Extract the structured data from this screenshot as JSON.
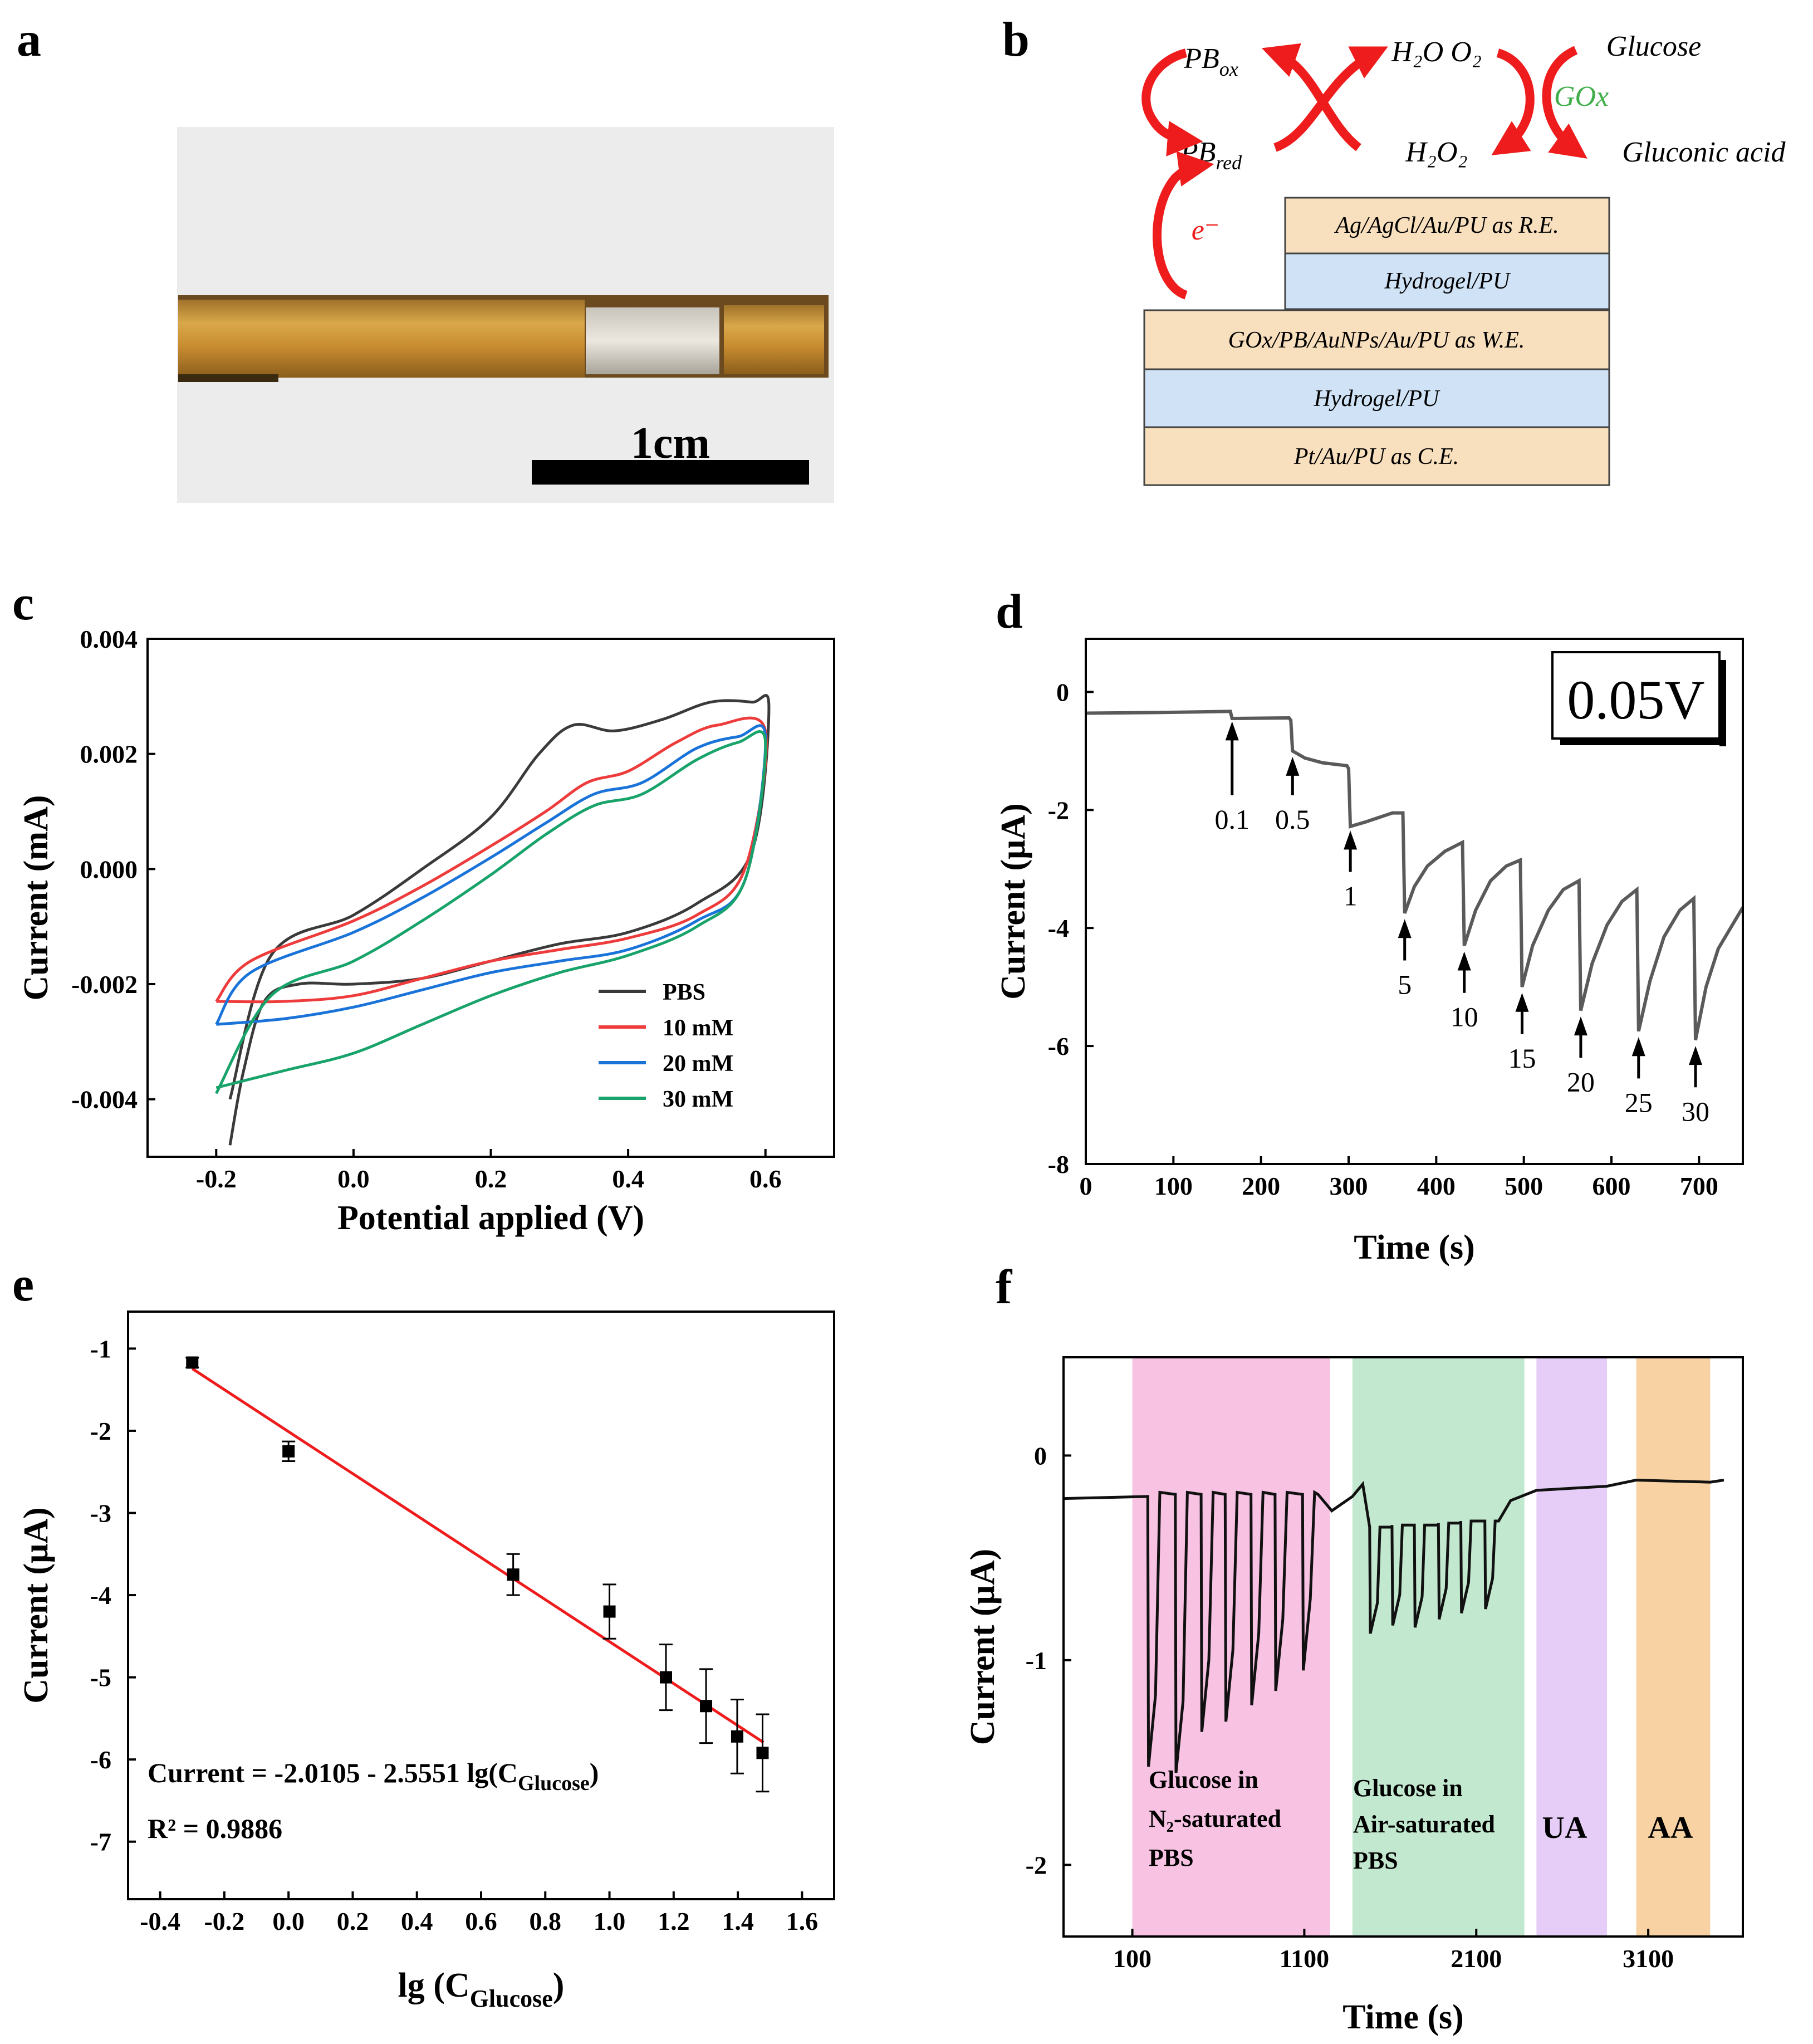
{
  "panels": {
    "a": {
      "letter": "a",
      "scale_label": "1cm"
    },
    "b": {
      "letter": "b",
      "species": {
        "pb_ox": "PB",
        "pb_ox_sub": "ox",
        "pb_red": "PB",
        "pb_red_sub": "red",
        "h2o_o2": "H₂O O₂",
        "h2o2": "H₂O₂",
        "glucose": "Glucose",
        "gox": "GOx",
        "gluconic": "Gluconic acid",
        "electron": "e⁻"
      },
      "layers": [
        "Ag/AgCl/Au/PU as R.E.",
        "Hydrogel/PU",
        "GOx/PB/AuNPs/Au/PU as W.E.",
        "Hydrogel/PU",
        "Pt/Au/PU as C.E."
      ],
      "colors": {
        "arrow": "#ee1c1c",
        "gox": "#3fae49",
        "tan": "#f8dfbd",
        "blue": "#cfe2f6"
      }
    },
    "c": {
      "letter": "c"
    },
    "d": {
      "letter": "d",
      "voltage_label": "0.05V"
    },
    "e": {
      "letter": "e",
      "equation": "Current = -2.0105 - 2.5551 lg(C",
      "equation_sub": "Glucose",
      "equation_end": ")",
      "r2": "R² = 0.9886"
    },
    "f": {
      "letter": "f",
      "regions": [
        "Glucose in",
        "N₂-saturated",
        "PBS",
        "Glucose in",
        "Air-saturated",
        "PBS",
        "UA",
        "AA"
      ]
    }
  },
  "chart_data": [
    {
      "id": "c",
      "type": "line",
      "title": "",
      "xlabel": "Potential applied (V)",
      "ylabel": "Current (mA)",
      "xlim": [
        -0.3,
        0.7
      ],
      "ylim": [
        -0.005,
        0.004
      ],
      "xticks": [
        "-0.2",
        "0.0",
        "0.2",
        "0.4",
        "0.6"
      ],
      "yticks": [
        "0.004",
        "0.002",
        "0.000",
        "-0.002",
        "-0.004"
      ],
      "legend": [
        "PBS",
        "10 mM",
        "20 mM",
        "30 mM"
      ],
      "colors": [
        "#3a3a3a",
        "#ee3b3b",
        "#1a73d9",
        "#18a36b"
      ],
      "series": [
        {
          "name": "PBS",
          "forward": [
            [
              -0.18,
              -0.004
            ],
            [
              -0.12,
              -0.0015
            ],
            [
              0.0,
              -0.0008
            ],
            [
              0.1,
              0.0
            ],
            [
              0.2,
              0.0009
            ],
            [
              0.27,
              0.002
            ],
            [
              0.32,
              0.0025
            ],
            [
              0.38,
              0.0024
            ],
            [
              0.45,
              0.0026
            ],
            [
              0.52,
              0.0029
            ],
            [
              0.58,
              0.0029
            ],
            [
              0.605,
              0.0028
            ]
          ],
          "reverse": [
            [
              0.605,
              0.0028
            ],
            [
              0.58,
              0.0003
            ],
            [
              0.5,
              -0.0006
            ],
            [
              0.4,
              -0.0011
            ],
            [
              0.3,
              -0.0013
            ],
            [
              0.2,
              -0.0016
            ],
            [
              0.1,
              -0.0019
            ],
            [
              0.0,
              -0.002
            ],
            [
              -0.08,
              -0.002
            ],
            [
              -0.13,
              -0.0023
            ],
            [
              -0.16,
              -0.0035
            ],
            [
              -0.18,
              -0.0048
            ]
          ]
        },
        {
          "name": "10 mM",
          "forward": [
            [
              -0.2,
              -0.0023
            ],
            [
              -0.15,
              -0.0016
            ],
            [
              0.0,
              -0.0009
            ],
            [
              0.1,
              -0.0003
            ],
            [
              0.2,
              0.0004
            ],
            [
              0.28,
              0.001
            ],
            [
              0.34,
              0.0015
            ],
            [
              0.4,
              0.0017
            ],
            [
              0.47,
              0.0022
            ],
            [
              0.53,
              0.0025
            ],
            [
              0.6,
              0.0024
            ]
          ],
          "reverse": [
            [
              0.6,
              0.0024
            ],
            [
              0.57,
              0.0
            ],
            [
              0.5,
              -0.0008
            ],
            [
              0.4,
              -0.0012
            ],
            [
              0.3,
              -0.0014
            ],
            [
              0.2,
              -0.0016
            ],
            [
              0.1,
              -0.0019
            ],
            [
              0.0,
              -0.0022
            ],
            [
              -0.1,
              -0.0023
            ],
            [
              -0.2,
              -0.0023
            ]
          ]
        },
        {
          "name": "20 mM",
          "forward": [
            [
              -0.2,
              -0.0027
            ],
            [
              -0.15,
              -0.0018
            ],
            [
              0.0,
              -0.0011
            ],
            [
              0.1,
              -0.0005
            ],
            [
              0.2,
              0.0002
            ],
            [
              0.28,
              0.0008
            ],
            [
              0.35,
              0.0013
            ],
            [
              0.42,
              0.0015
            ],
            [
              0.5,
              0.0021
            ],
            [
              0.56,
              0.0023
            ],
            [
              0.6,
              0.0023
            ]
          ],
          "reverse": [
            [
              0.6,
              0.0023
            ],
            [
              0.57,
              -0.0002
            ],
            [
              0.5,
              -0.0009
            ],
            [
              0.4,
              -0.0014
            ],
            [
              0.3,
              -0.0016
            ],
            [
              0.2,
              -0.0018
            ],
            [
              0.1,
              -0.0021
            ],
            [
              0.0,
              -0.0024
            ],
            [
              -0.1,
              -0.0026
            ],
            [
              -0.2,
              -0.0027
            ]
          ]
        },
        {
          "name": "30 mM",
          "forward": [
            [
              -0.2,
              -0.0039
            ],
            [
              -0.12,
              -0.0022
            ],
            [
              0.0,
              -0.0016
            ],
            [
              0.1,
              -0.0009
            ],
            [
              0.2,
              -0.0001
            ],
            [
              0.28,
              0.0006
            ],
            [
              0.35,
              0.0011
            ],
            [
              0.42,
              0.0013
            ],
            [
              0.5,
              0.0019
            ],
            [
              0.56,
              0.0022
            ],
            [
              0.6,
              0.0022
            ]
          ],
          "reverse": [
            [
              0.6,
              0.0022
            ],
            [
              0.57,
              -0.0002
            ],
            [
              0.5,
              -0.001
            ],
            [
              0.4,
              -0.0015
            ],
            [
              0.3,
              -0.0018
            ],
            [
              0.2,
              -0.0022
            ],
            [
              0.1,
              -0.0027
            ],
            [
              0.0,
              -0.0032
            ],
            [
              -0.1,
              -0.0035
            ],
            [
              -0.2,
              -0.0038
            ]
          ]
        }
      ]
    },
    {
      "id": "d",
      "type": "line",
      "xlabel": "Time (s)",
      "ylabel": "Current (μA)",
      "xlim": [
        0,
        750
      ],
      "ylim": [
        -8,
        0.9
      ],
      "xticks": [
        "0",
        "100",
        "200",
        "300",
        "400",
        "500",
        "600",
        "700"
      ],
      "yticks": [
        "0",
        "-2",
        "-4",
        "-6",
        "-8"
      ],
      "color": "#5a5a5a",
      "series": [
        {
          "name": "amperometric",
          "points": [
            [
              0,
              -0.36
            ],
            [
              80,
              -0.35
            ],
            [
              165,
              -0.33
            ],
            [
              167,
              -0.45
            ],
            [
              232,
              -0.44
            ],
            [
              234,
              -0.48
            ],
            [
              236,
              -1.0
            ],
            [
              250,
              -1.12
            ],
            [
              270,
              -1.2
            ],
            [
              298,
              -1.25
            ],
            [
              300,
              -1.3
            ],
            [
              302,
              -2.28
            ],
            [
              320,
              -2.2
            ],
            [
              350,
              -2.05
            ],
            [
              362,
              -2.05
            ],
            [
              364,
              -3.75
            ],
            [
              375,
              -3.3
            ],
            [
              390,
              -2.95
            ],
            [
              410,
              -2.7
            ],
            [
              430,
              -2.55
            ],
            [
              432,
              -4.3
            ],
            [
              445,
              -3.7
            ],
            [
              462,
              -3.2
            ],
            [
              480,
              -2.95
            ],
            [
              496,
              -2.85
            ],
            [
              498,
              -5.0
            ],
            [
              510,
              -4.3
            ],
            [
              528,
              -3.7
            ],
            [
              545,
              -3.35
            ],
            [
              563,
              -3.2
            ],
            [
              565,
              -5.4
            ],
            [
              578,
              -4.6
            ],
            [
              595,
              -3.95
            ],
            [
              612,
              -3.55
            ],
            [
              629,
              -3.35
            ],
            [
              631,
              -5.75
            ],
            [
              644,
              -4.9
            ],
            [
              660,
              -4.15
            ],
            [
              678,
              -3.7
            ],
            [
              694,
              -3.5
            ],
            [
              696,
              -5.9
            ],
            [
              708,
              -5.0
            ],
            [
              722,
              -4.35
            ],
            [
              738,
              -3.95
            ],
            [
              750,
              -3.65
            ]
          ]
        }
      ],
      "annotations": [
        {
          "label": "0.1",
          "x": 167,
          "y_tip": -0.5,
          "y_base": -1.75
        },
        {
          "label": "0.5",
          "x": 236,
          "y_tip": -1.1,
          "y_base": -1.75
        },
        {
          "label": "1",
          "x": 302,
          "y_tip": -2.35,
          "y_base": -3.05
        },
        {
          "label": "5",
          "x": 364,
          "y_tip": -3.85,
          "y_base": -4.55
        },
        {
          "label": "10",
          "x": 432,
          "y_tip": -4.4,
          "y_base": -5.1
        },
        {
          "label": "15",
          "x": 498,
          "y_tip": -5.1,
          "y_base": -5.8
        },
        {
          "label": "20",
          "x": 565,
          "y_tip": -5.5,
          "y_base": -6.2
        },
        {
          "label": "25",
          "x": 631,
          "y_tip": -5.85,
          "y_base": -6.55
        },
        {
          "label": "30",
          "x": 696,
          "y_tip": -6.0,
          "y_base": -6.7
        }
      ]
    },
    {
      "id": "e",
      "type": "scatter",
      "xlabel": "lg (C",
      "xlabel_sub": "Glucose",
      "xlabel_end": ")",
      "ylabel": "Current (μA)",
      "xlim": [
        -0.5,
        1.7
      ],
      "ylim": [
        -7.7,
        -0.55
      ],
      "xticks": [
        "-0.4",
        "-0.2",
        "0.0",
        "0.2",
        "0.4",
        "0.6",
        "0.8",
        "1.0",
        "1.2",
        "1.4",
        "1.6"
      ],
      "yticks": [
        "-1",
        "-2",
        "-3",
        "-4",
        "-5",
        "-6",
        "-7"
      ],
      "points": [
        {
          "x": -0.3,
          "y": -1.17,
          "err": 0.06
        },
        {
          "x": 0.0,
          "y": -2.25,
          "err": 0.12
        },
        {
          "x": 0.7,
          "y": -3.75,
          "err": 0.25
        },
        {
          "x": 1.0,
          "y": -4.2,
          "err": 0.33
        },
        {
          "x": 1.176,
          "y": -5.0,
          "err": 0.4
        },
        {
          "x": 1.301,
          "y": -5.35,
          "err": 0.45
        },
        {
          "x": 1.398,
          "y": -5.72,
          "err": 0.45
        },
        {
          "x": 1.477,
          "y": -5.92,
          "err": 0.47
        }
      ],
      "fit": {
        "intercept": -2.0105,
        "slope": -2.5551,
        "x_range": [
          -0.3,
          1.48
        ],
        "color": "#ee1c1c"
      }
    },
    {
      "id": "f",
      "type": "line",
      "xlabel": "Time (s)",
      "ylabel": "Current (μA)",
      "xlim": [
        -300,
        3650
      ],
      "ylim": [
        -2.35,
        0.48
      ],
      "xticks": [
        "100",
        "1100",
        "2100",
        "3100"
      ],
      "yticks": [
        "0",
        "-1",
        "-2"
      ],
      "regions": [
        {
          "x0": 100,
          "x1": 1250,
          "color": "#f8c2e3"
        },
        {
          "x0": 1380,
          "x1": 2380,
          "color": "#c2e8cf"
        },
        {
          "x0": 2450,
          "x1": 2860,
          "color": "#e6cdf8"
        },
        {
          "x0": 3030,
          "x1": 3460,
          "color": "#f8d2a3"
        }
      ],
      "spikes": [
        {
          "x": 190,
          "min": -1.52,
          "base": -0.2
        },
        {
          "x": 350,
          "min": -1.55,
          "base": -0.2
        },
        {
          "x": 500,
          "min": -1.35,
          "base": -0.2
        },
        {
          "x": 640,
          "min": -1.3,
          "base": -0.2
        },
        {
          "x": 790,
          "min": -1.22,
          "base": -0.2
        },
        {
          "x": 930,
          "min": -1.15,
          "base": -0.2
        },
        {
          "x": 1090,
          "min": -1.05,
          "base": -0.2
        }
      ],
      "spikes2": [
        {
          "x": 1480,
          "min": -0.87,
          "base": -0.35
        },
        {
          "x": 1610,
          "min": -0.83,
          "base": -0.34
        },
        {
          "x": 1740,
          "min": -0.84,
          "base": -0.34
        },
        {
          "x": 1880,
          "min": -0.8,
          "base": -0.33
        },
        {
          "x": 2010,
          "min": -0.77,
          "base": -0.32
        },
        {
          "x": 2150,
          "min": -0.75,
          "base": -0.32
        }
      ],
      "color": "#111111"
    }
  ]
}
